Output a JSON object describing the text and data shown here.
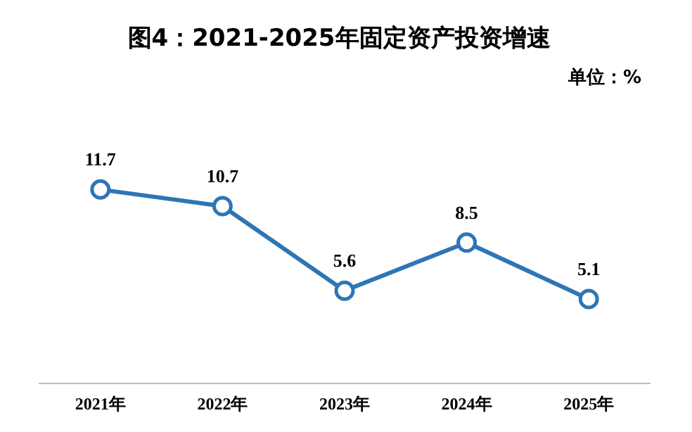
{
  "chart_data": {
    "type": "line",
    "title": "图4：2021-2025年固定资产投资增速",
    "annotations": [
      "单位：%"
    ],
    "categories": [
      "2021年",
      "2022年",
      "2023年",
      "2024年",
      "2025年"
    ],
    "series": [
      {
        "color": "#2e75b6",
        "values": [
          11.7,
          10.7,
          5.6,
          8.5,
          5.1
        ]
      }
    ],
    "marker": "circle",
    "line_style": "solid",
    "data_labels": true,
    "grid": false,
    "legend": false,
    "relative": false
  }
}
